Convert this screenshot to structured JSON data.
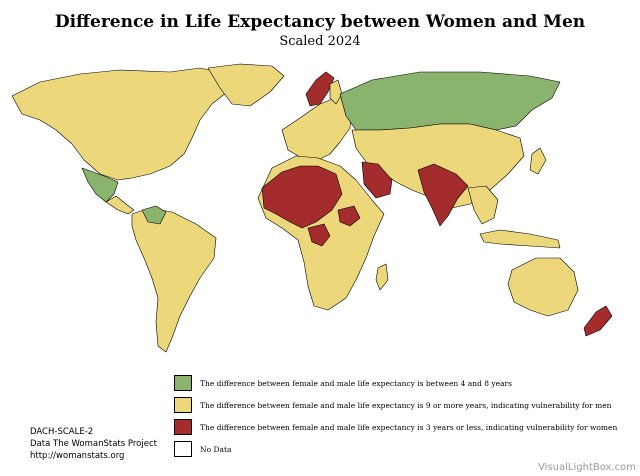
{
  "title": "Difference in Life Expectancy between Women and Men",
  "subtitle": "Scaled 2024",
  "colors": {
    "green": "#8ab36d",
    "yellow": "#ecd87b",
    "red": "#a52c2c",
    "none": "#ffffff"
  },
  "legend": [
    {
      "color": "#8ab36d",
      "label": "The difference between female and male life expectancy is between 4 and 8 years"
    },
    {
      "color": "#ecd87b",
      "label": "The difference between female and male life expectancy is 9 or more years, indicating vulnerability for men"
    },
    {
      "color": "#a52c2c",
      "label": "The difference between female and male life expectancy is 3 years or less, indicating vulnerability for women"
    },
    {
      "color": "#ffffff",
      "label": "No Data"
    }
  ],
  "credits": {
    "code": "DACH-SCALE-2",
    "source": "Data The WomanStats Project",
    "url": "http://womanstats.org"
  },
  "watermark": "VisualLightBox.com"
}
